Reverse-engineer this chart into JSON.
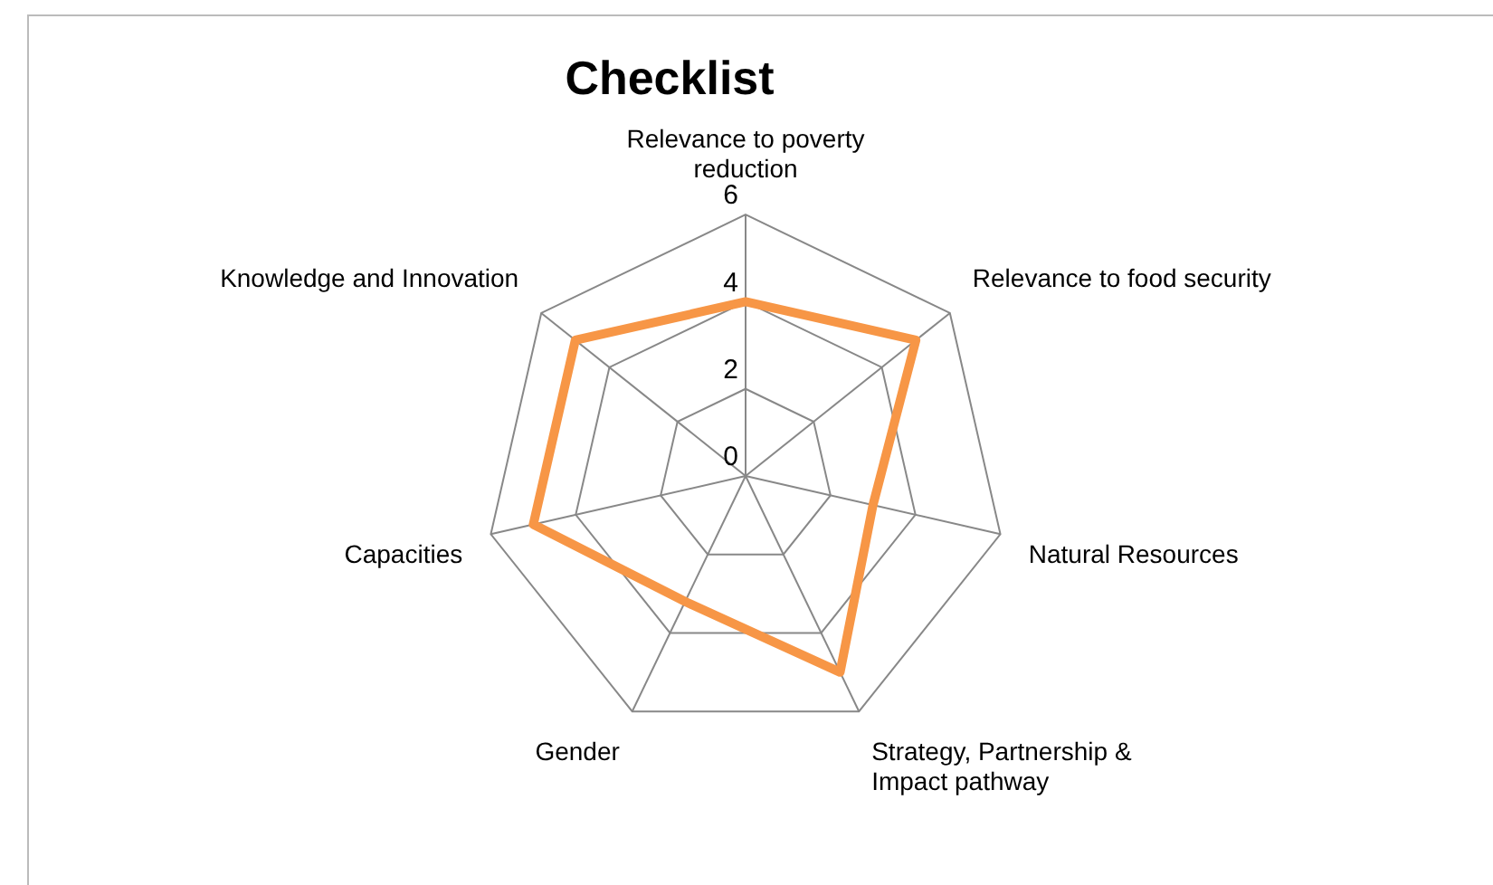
{
  "chart_data": {
    "type": "radar",
    "title": "Checklist",
    "categories": [
      "Relevance to poverty reduction",
      "Relevance to food security",
      "Natural Resources",
      "Strategy, Partnership & Impact pathway",
      "Gender",
      "Capacities",
      "Knowledge and Innovation"
    ],
    "series": [
      {
        "color": "#f79646",
        "values": [
          4,
          5,
          3,
          5,
          3.2,
          5,
          5
        ]
      }
    ],
    "ylim": [
      0,
      6
    ],
    "yticks": [
      0,
      2,
      4,
      6
    ],
    "legend": false,
    "marker": "none"
  }
}
